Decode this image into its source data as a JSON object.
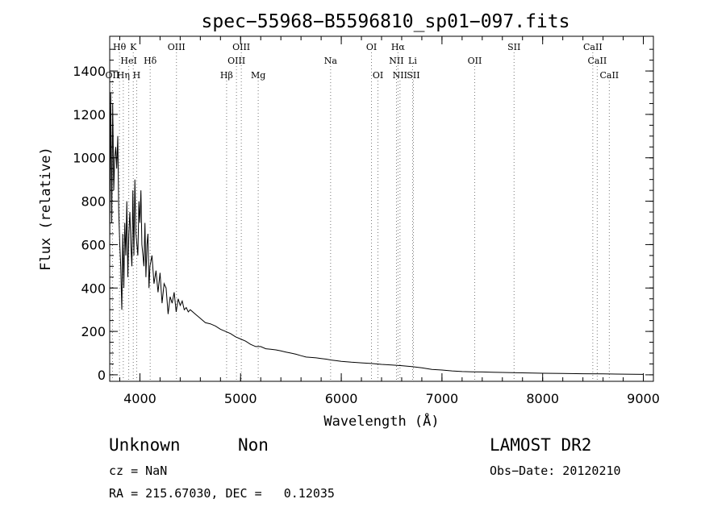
{
  "chart_data": {
    "type": "line",
    "title": "spec−55968−B5596810_sp01−097.fits",
    "xlabel": "Wavelength (Å)",
    "ylabel": "Flux (relative)",
    "xlim": [
      3700,
      9100
    ],
    "ylim": [
      -30,
      1560
    ],
    "x_ticks": [
      "4000",
      "5000",
      "6000",
      "7000",
      "8000",
      "9000"
    ],
    "y_ticks": [
      "0",
      "200",
      "400",
      "600",
      "800",
      "1000",
      "1200",
      "1400"
    ],
    "series": [
      {
        "x": [
          3700,
          3710,
          3720,
          3730,
          3740,
          3750,
          3760,
          3770,
          3780,
          3790,
          3800,
          3810,
          3820,
          3830,
          3840,
          3850,
          3860,
          3870,
          3880,
          3890,
          3900,
          3910,
          3920,
          3930,
          3940,
          3950,
          3960,
          3970,
          3980,
          3990,
          4000,
          4010,
          4020,
          4030,
          4040,
          4050,
          4060,
          4070,
          4080,
          4090,
          4100,
          4120,
          4140,
          4160,
          4180,
          4200,
          4220,
          4240,
          4260,
          4280,
          4300,
          4320,
          4340,
          4360,
          4380,
          4400,
          4420,
          4440,
          4460,
          4480,
          4500,
          4550,
          4600,
          4650,
          4700,
          4750,
          4800,
          4850,
          4900,
          4950,
          5000,
          5050,
          5100,
          5150,
          5200,
          5250,
          5300,
          5350,
          5400,
          5450,
          5500,
          5550,
          5600,
          5650,
          5700,
          5750,
          5800,
          5850,
          5900,
          5950,
          6000,
          6100,
          6200,
          6300,
          6400,
          6500,
          6600,
          6700,
          6800,
          6900,
          7000,
          7100,
          7200,
          7300,
          7400,
          7500,
          7600,
          7700,
          7800,
          7900,
          8000,
          8200,
          8400,
          8600,
          8800,
          9000
        ],
        "y": [
          600,
          1300,
          700,
          1250,
          850,
          1000,
          1050,
          950,
          1100,
          750,
          600,
          500,
          300,
          650,
          400,
          700,
          550,
          800,
          450,
          650,
          750,
          600,
          500,
          850,
          550,
          900,
          650,
          600,
          550,
          800,
          700,
          850,
          600,
          550,
          500,
          700,
          450,
          600,
          650,
          400,
          500,
          550,
          420,
          480,
          380,
          470,
          330,
          420,
          400,
          280,
          360,
          330,
          380,
          290,
          350,
          320,
          340,
          300,
          310,
          290,
          300,
          280,
          260,
          240,
          235,
          225,
          210,
          200,
          190,
          175,
          165,
          155,
          140,
          130,
          130,
          120,
          118,
          115,
          110,
          105,
          100,
          95,
          88,
          82,
          80,
          78,
          75,
          72,
          68,
          65,
          62,
          58,
          55,
          52,
          48,
          45,
          42,
          38,
          32,
          25,
          22,
          18,
          15,
          14,
          13,
          12,
          11,
          10,
          9,
          8,
          7,
          6,
          5,
          4,
          3,
          2
        ]
      }
    ],
    "annotations": [
      {
        "label": "Hθ",
        "x": 3797,
        "row": 1
      },
      {
        "label": "HeI",
        "x": 3889,
        "row": 2
      },
      {
        "label": "K",
        "x": 3934,
        "row": 1
      },
      {
        "label": "H",
        "x": 3968,
        "row": 3
      },
      {
        "label": "Hη",
        "x": 3835,
        "row": 3
      },
      {
        "label": "OII",
        "x": 3727,
        "row": 3
      },
      {
        "label": "Hδ",
        "x": 4102,
        "row": 2
      },
      {
        "label": "OIII",
        "x": 4363,
        "row": 1
      },
      {
        "label": "Hβ",
        "x": 4861,
        "row": 3
      },
      {
        "label": "OIII",
        "x": 4959,
        "row": 2
      },
      {
        "label": "OIII",
        "x": 5007,
        "row": 1
      },
      {
        "label": "Mg",
        "x": 5175,
        "row": 3
      },
      {
        "label": "Na",
        "x": 5894,
        "row": 2
      },
      {
        "label": "OI",
        "x": 6300,
        "row": 1
      },
      {
        "label": "OI",
        "x": 6364,
        "row": 3
      },
      {
        "label": "Hα",
        "x": 6563,
        "row": 1
      },
      {
        "label": "NII",
        "x": 6548,
        "row": 2
      },
      {
        "label": "NII",
        "x": 6583,
        "row": 3
      },
      {
        "label": "Li",
        "x": 6708,
        "row": 2
      },
      {
        "label": "SII",
        "x": 6716,
        "row": 3
      },
      {
        "label": "OII",
        "x": 7325,
        "row": 2
      },
      {
        "label": "SII",
        "x": 7716,
        "row": 1
      },
      {
        "label": "CaII",
        "x": 8498,
        "row": 1
      },
      {
        "label": "CaII",
        "x": 8542,
        "row": 2
      },
      {
        "label": "CaII",
        "x": 8662,
        "row": 3
      }
    ],
    "grid": false,
    "legend": "none"
  },
  "info": {
    "class_left": "Unknown",
    "class_right": "Non",
    "survey": "LAMOST DR2",
    "cz": "cz = NaN",
    "obs_date": "Obs−Date: 20120210",
    "coords": "RA = 215.67030, DEC =   0.12035"
  }
}
